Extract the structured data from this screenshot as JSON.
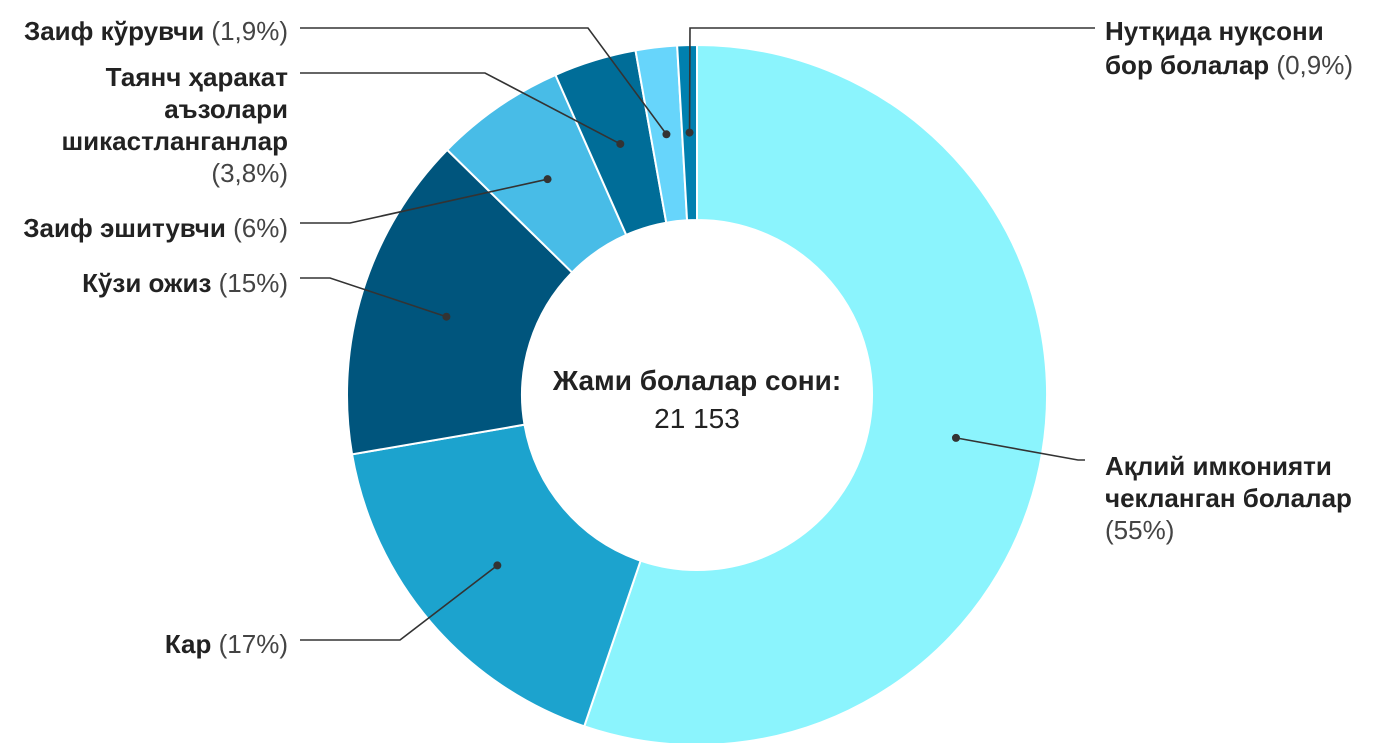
{
  "chart_data": {
    "type": "pie",
    "style": "donut",
    "center": {
      "title": "Жами болалар сони:",
      "value": "21 153"
    },
    "slices": [
      {
        "label": "Ақлий имконияти чекланган болалар",
        "value": 55,
        "value_text": "(55%)",
        "color": "#8BF4FD"
      },
      {
        "label": "Кар",
        "value": 17,
        "value_text": "(17%)",
        "color": "#1CA3CE"
      },
      {
        "label": "Кўзи ожиз",
        "value": 15,
        "value_text": "(15%)",
        "color": "#00557D"
      },
      {
        "label": "Заиф эшитувчи",
        "value": 6,
        "value_text": "(6%)",
        "color": "#48BCE7"
      },
      {
        "label": "Таянч ҳаракат аъзолари шикастланганлар",
        "value": 3.8,
        "value_text": "(3,8%)",
        "color": "#006D98"
      },
      {
        "label": "Заиф кўрувчи",
        "value": 1.9,
        "value_text": "(1,9%)",
        "color": "#67D5FB"
      },
      {
        "label": "Нутқида нуқсони бор болалар",
        "value": 0.9,
        "value_text": "(0,9%)",
        "color": "#0080AF"
      }
    ]
  }
}
